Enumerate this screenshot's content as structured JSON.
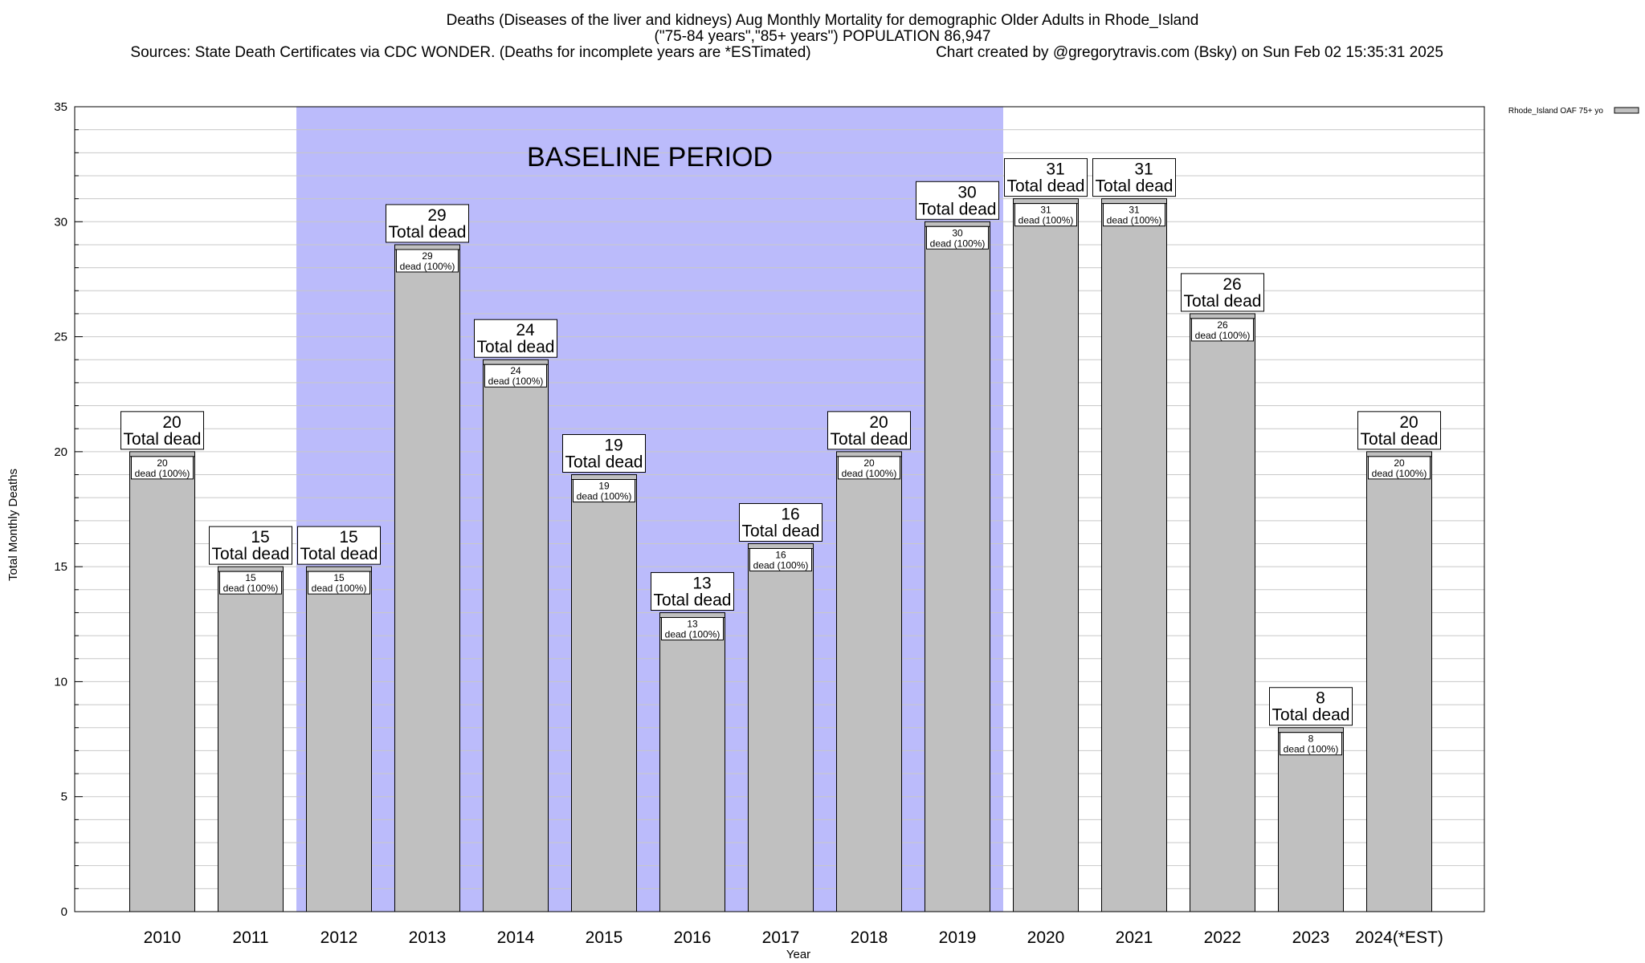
{
  "title": {
    "line1": "Deaths (Diseases of the liver and kidneys) Aug Monthly Mortality for demographic Older Adults in Rhode_Island",
    "line2": "(\"75-84 years\",\"85+ years\") POPULATION 86,947",
    "sources": "Sources: State Death Certificates via CDC WONDER. (Deaths for incomplete years are *ESTimated)",
    "credit": "Chart created by @gregorytravis.com (Bsky) on Sun Feb 02 15:35:31 2025"
  },
  "legend": {
    "label": "Rhode_Island OAF 75+ yo"
  },
  "baseline_label": "BASELINE PERIOD",
  "colors": {
    "bar_fill": "#c0c0c0",
    "baseline_band": "#bbbbfb",
    "grid": "#c8c8c8"
  },
  "chart_data": {
    "type": "bar",
    "categories": [
      "2010",
      "2011",
      "2012",
      "2013",
      "2014",
      "2015",
      "2016",
      "2017",
      "2018",
      "2019",
      "2020",
      "2021",
      "2022",
      "2023",
      "2024(*EST)"
    ],
    "series": [
      {
        "name": "Rhode_Island OAF 75+ yo",
        "values": [
          20,
          15,
          15,
          29,
          24,
          19,
          13,
          16,
          20,
          30,
          31,
          31,
          26,
          8,
          20
        ]
      }
    ],
    "total_label_text": "Total dead",
    "bar_label_suffix": "dead (100%)",
    "xlabel": "Year",
    "ylabel": "Total Monthly Deaths",
    "ylim": [
      0,
      35
    ],
    "yticks": [
      0,
      5,
      10,
      15,
      20,
      25,
      30,
      35
    ],
    "baseline_period": [
      "2012",
      "2019"
    ],
    "grid": true,
    "legend_position": "top-right"
  }
}
